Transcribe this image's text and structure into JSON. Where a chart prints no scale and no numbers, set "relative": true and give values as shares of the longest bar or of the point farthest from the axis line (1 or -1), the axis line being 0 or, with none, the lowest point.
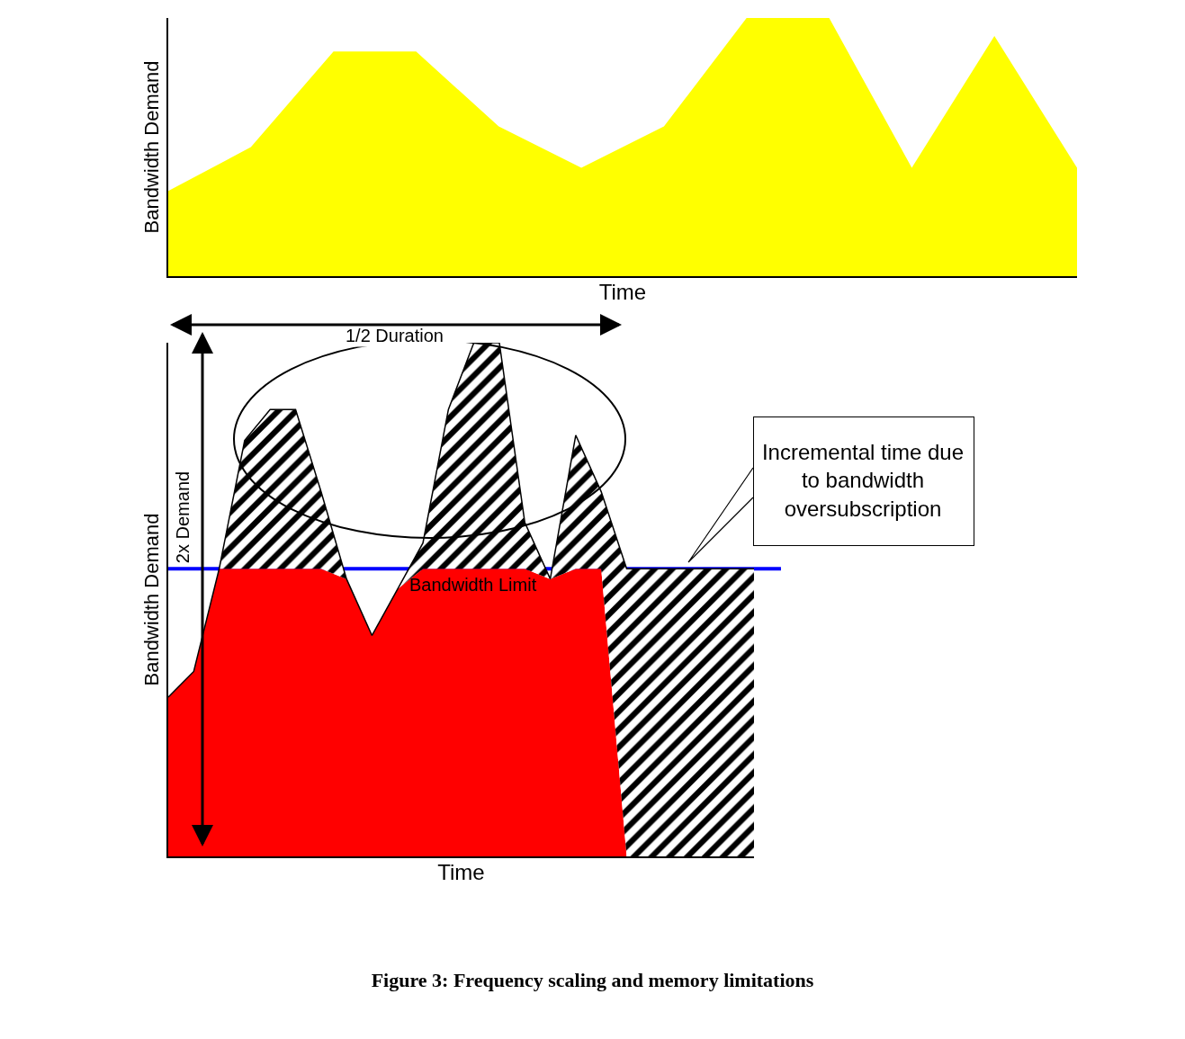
{
  "chart_data": [
    {
      "type": "area",
      "relative": true,
      "categories": [
        null,
        null,
        null,
        null,
        null,
        null,
        null,
        null,
        null,
        null,
        null,
        null
      ],
      "values": [
        0.33,
        0.5,
        0.87,
        0.87,
        0.58,
        0.42,
        0.58,
        1,
        1,
        0.42,
        0.93,
        0.42
      ],
      "color": "#ffff00",
      "xlabel": "Time",
      "ylabel": "Bandwidth Demand"
    },
    {
      "type": "area",
      "relative": true,
      "stacked": true,
      "categories": [
        null,
        null,
        null,
        null,
        null,
        null,
        null,
        null,
        null,
        null,
        null,
        null,
        null,
        null,
        null,
        null,
        null,
        null,
        null,
        null,
        null,
        null,
        null,
        null
      ],
      "series": [
        {
          "color": "#ff0000",
          "values": [
            0.31,
            0.36,
            0.56,
            0.56,
            0.56,
            0.56,
            0.56,
            0.54,
            0.43,
            0.52,
            0.56,
            0.56,
            0.56,
            0.56,
            0.56,
            0.54,
            0.56,
            0.56,
            0,
            0,
            0,
            0,
            0,
            0
          ]
        },
        {
          "color": "#000000",
          "values": [
            0,
            0,
            0,
            0.25,
            0.31,
            0.31,
            0.15,
            0,
            0,
            0,
            0.05,
            0.31,
            0.44,
            0.44,
            0.09,
            0,
            0.26,
            0.15,
            0.56,
            0.56,
            0.56,
            0.56,
            0.56,
            0.56
          ]
        }
      ],
      "xlabel": "Time",
      "ylabel": "Bandwidth Demand",
      "ref_lines": [
        {
          "axis": "y",
          "value": 0.56,
          "label": "Bandwidth Limit",
          "color": "#0000ff"
        }
      ],
      "annotations": [
        "1/2 Duration",
        "2x Demand",
        "Incremental time due to bandwidth oversubscription",
        "Figure 3: Frequency scaling and memory limitations"
      ]
    }
  ]
}
